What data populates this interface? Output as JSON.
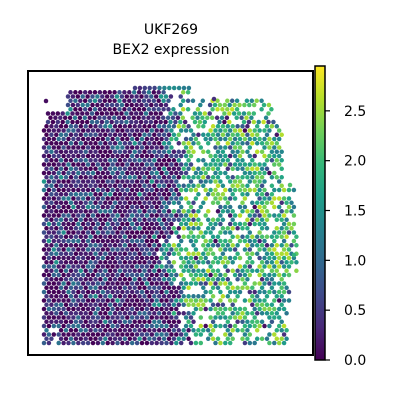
{
  "chart_data": {
    "type": "scatter",
    "subtype": "spatial-hex-spot-map",
    "title_line1": "UKF269",
    "title_line2": "BEX2 expression",
    "xlabel": "",
    "ylabel": "",
    "colormap": "viridis",
    "colorbar": {
      "range": [
        0.0,
        2.95
      ],
      "ticks": [
        0.0,
        0.5,
        1.0,
        1.5,
        2.0,
        2.5
      ],
      "tick_labels": [
        "0.0",
        "0.5",
        "1.0",
        "1.5",
        "2.0",
        "2.5"
      ]
    },
    "regions": [
      {
        "name": "left tissue",
        "mean_expression": 0.3
      },
      {
        "name": "right tissue",
        "mean_expression": 1.9
      }
    ],
    "axes_ticks_visible": false,
    "grid": false
  },
  "colors": {
    "viridis": [
      "#440154",
      "#482878",
      "#3e4989",
      "#31688e",
      "#26828e",
      "#1f9e89",
      "#35b779",
      "#6ece58",
      "#b5de2b",
      "#fde725"
    ]
  }
}
